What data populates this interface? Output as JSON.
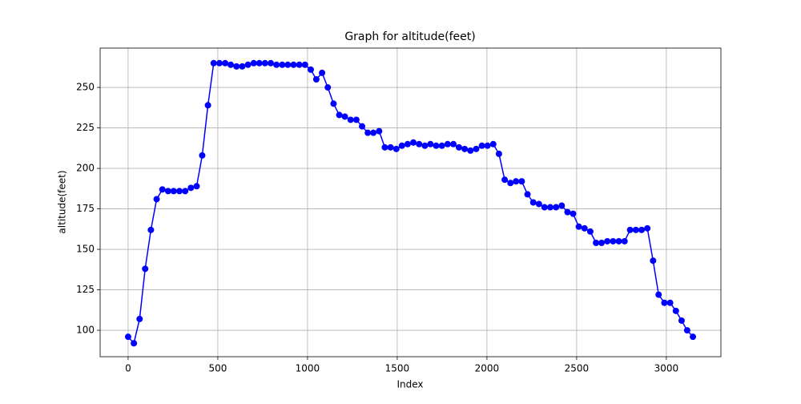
{
  "chart_data": {
    "type": "line",
    "title": "Graph for altitude(feet)",
    "x_label": "Index",
    "y_label": "altitude(feet)",
    "x": [
      0,
      32,
      64,
      95,
      127,
      159,
      191,
      223,
      254,
      286,
      318,
      350,
      382,
      413,
      445,
      477,
      509,
      541,
      572,
      604,
      636,
      668,
      700,
      731,
      763,
      795,
      827,
      859,
      890,
      922,
      954,
      986,
      1018,
      1049,
      1081,
      1113,
      1145,
      1177,
      1208,
      1240,
      1272,
      1304,
      1336,
      1367,
      1399,
      1431,
      1463,
      1495,
      1526,
      1558,
      1590,
      1622,
      1654,
      1685,
      1717,
      1749,
      1781,
      1813,
      1844,
      1876,
      1908,
      1940,
      1972,
      2003,
      2035,
      2067,
      2099,
      2131,
      2162,
      2194,
      2226,
      2258,
      2290,
      2321,
      2353,
      2385,
      2417,
      2449,
      2480,
      2512,
      2544,
      2576,
      2608,
      2639,
      2671,
      2703,
      2735,
      2767,
      2798,
      2830,
      2862,
      2894,
      2926,
      2957,
      2989,
      3021,
      3053,
      3085,
      3116,
      3148
    ],
    "series": [
      {
        "name": "altitude(feet)",
        "color": "#0000ff",
        "values": [
          96,
          92,
          107,
          138,
          162,
          181,
          187,
          186,
          186,
          186,
          186,
          188,
          189,
          208,
          239,
          265,
          265,
          265,
          264,
          263,
          263,
          264,
          265,
          265,
          265,
          265,
          264,
          264,
          264,
          264,
          264,
          264,
          261,
          255,
          259,
          250,
          240,
          233,
          232,
          230,
          230,
          226,
          222,
          222,
          223,
          213,
          213,
          212,
          214,
          215,
          216,
          215,
          214,
          215,
          214,
          214,
          215,
          215,
          213,
          212,
          211,
          212,
          214,
          214,
          215,
          209,
          193,
          191,
          192,
          192,
          184,
          179,
          178,
          176,
          176,
          176,
          177,
          173,
          172,
          164,
          163,
          161,
          154,
          154,
          155,
          155,
          155,
          155,
          162,
          162,
          162,
          163,
          143,
          122,
          117,
          117,
          112,
          106,
          100,
          96
        ]
      }
    ],
    "xlim": [
      -156,
      3304
    ],
    "ylim": [
      83.7,
      274.3
    ],
    "xticks": [
      0,
      500,
      1000,
      1500,
      2000,
      2500,
      3000
    ],
    "yticks": [
      100,
      125,
      150,
      175,
      200,
      225,
      250
    ],
    "grid": true
  }
}
